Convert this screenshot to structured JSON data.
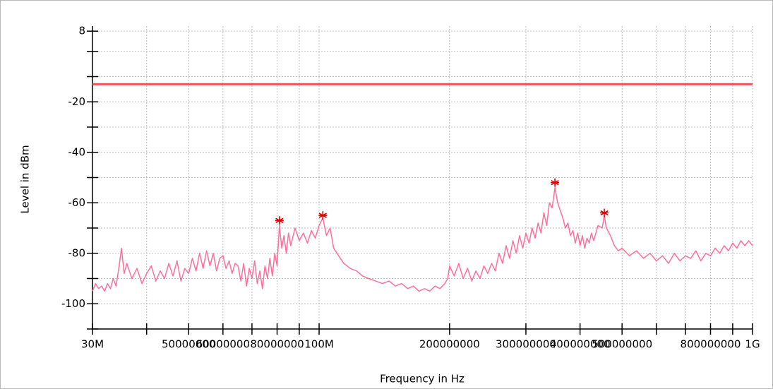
{
  "chart_data": {
    "type": "line",
    "y_label": "Level in dBm",
    "x_label": "Frequency in Hz",
    "log_x": true,
    "grid": true,
    "xlim": [
      30000000,
      1000000000
    ],
    "ylim": [
      -110,
      10
    ],
    "xticks": [
      {
        "value": 30000000,
        "label": "30M"
      },
      50000000,
      60000000,
      80000000,
      {
        "value": 100000000,
        "label": "100M"
      },
      200000000,
      300000000,
      400000000,
      500000000,
      800000000,
      {
        "value": 1000000000,
        "label": "1G"
      }
    ],
    "xticks_unlabeled": [
      40000000,
      70000000,
      90000000,
      600000000,
      700000000,
      900000000
    ],
    "yticks": [
      8,
      -20,
      -40,
      -60,
      -80,
      -100
    ],
    "yticks_unlabeled": [
      0,
      -10,
      -30,
      -50,
      -70,
      -90,
      -110
    ],
    "color": "#ff6f9a",
    "x": [
      30000000,
      30500000,
      31000000,
      31500000,
      32000000,
      32500000,
      33000000,
      33500000,
      34000000,
      34500000,
      35000000,
      35500000,
      36000000,
      37000000,
      38000000,
      39000000,
      40000000,
      41000000,
      42000000,
      43000000,
      44000000,
      45000000,
      46000000,
      47000000,
      48000000,
      49000000,
      50000000,
      51000000,
      52000000,
      53000000,
      54000000,
      55000000,
      56000000,
      57000000,
      58000000,
      59000000,
      60000000,
      61000000,
      62000000,
      63000000,
      64000000,
      65000000,
      66000000,
      67000000,
      68000000,
      69000000,
      70000000,
      71000000,
      72000000,
      73000000,
      74000000,
      75000000,
      76000000,
      77000000,
      78000000,
      79000000,
      80000000,
      81000000,
      82000000,
      83000000,
      84000000,
      85000000,
      86000000,
      88000000,
      90000000,
      92000000,
      94000000,
      96000000,
      98000000,
      100000000,
      102000000,
      104000000,
      106000000,
      108000000,
      110000000,
      114000000,
      118000000,
      122000000,
      126000000,
      130000000,
      135000000,
      140000000,
      145000000,
      150000000,
      155000000,
      160000000,
      165000000,
      170000000,
      175000000,
      180000000,
      185000000,
      190000000,
      195000000,
      198000000,
      200000000,
      205000000,
      210000000,
      215000000,
      220000000,
      225000000,
      230000000,
      235000000,
      240000000,
      245000000,
      250000000,
      255000000,
      260000000,
      265000000,
      270000000,
      275000000,
      280000000,
      285000000,
      290000000,
      295000000,
      300000000,
      305000000,
      310000000,
      315000000,
      320000000,
      325000000,
      330000000,
      335000000,
      340000000,
      345000000,
      350000000,
      355000000,
      360000000,
      365000000,
      370000000,
      375000000,
      380000000,
      385000000,
      390000000,
      395000000,
      400000000,
      405000000,
      410000000,
      415000000,
      420000000,
      425000000,
      430000000,
      440000000,
      450000000,
      455000000,
      460000000,
      470000000,
      480000000,
      490000000,
      500000000,
      520000000,
      540000000,
      560000000,
      580000000,
      600000000,
      620000000,
      640000000,
      660000000,
      680000000,
      700000000,
      720000000,
      740000000,
      760000000,
      780000000,
      800000000,
      820000000,
      840000000,
      860000000,
      880000000,
      900000000,
      920000000,
      940000000,
      960000000,
      980000000,
      1000000000
    ],
    "values": [
      -95,
      -92,
      -94,
      -93,
      -95,
      -92,
      -94,
      -90,
      -93,
      -86,
      -78,
      -88,
      -84,
      -90,
      -86,
      -92,
      -88,
      -85,
      -91,
      -87,
      -90,
      -84,
      -89,
      -83,
      -91,
      -86,
      -88,
      -82,
      -87,
      -80,
      -86,
      -79,
      -85,
      -80,
      -87,
      -82,
      -81,
      -86,
      -83,
      -88,
      -84,
      -85,
      -91,
      -84,
      -93,
      -86,
      -90,
      -83,
      -92,
      -87,
      -94,
      -85,
      -90,
      -82,
      -89,
      -80,
      -85,
      -69,
      -78,
      -73,
      -80,
      -72,
      -77,
      -70,
      -75,
      -72,
      -76,
      -71,
      -74,
      -69,
      -66,
      -73,
      -70,
      -78,
      -80,
      -84,
      -86,
      -87,
      -89,
      -90,
      -91,
      -92,
      -91,
      -93,
      -92,
      -94,
      -93,
      -95,
      -94,
      -95,
      -93,
      -94,
      -92,
      -90,
      -85,
      -89,
      -84,
      -90,
      -86,
      -91,
      -87,
      -90,
      -85,
      -88,
      -84,
      -87,
      -80,
      -84,
      -77,
      -82,
      -75,
      -80,
      -73,
      -78,
      -72,
      -76,
      -70,
      -74,
      -68,
      -72,
      -64,
      -69,
      -60,
      -62,
      -54,
      -60,
      -63,
      -66,
      -70,
      -68,
      -73,
      -71,
      -76,
      -72,
      -77,
      -73,
      -78,
      -74,
      -76,
      -72,
      -75,
      -69,
      -70,
      -65,
      -70,
      -73,
      -77,
      -79,
      -78,
      -81,
      -79,
      -82,
      -80,
      -83,
      -81,
      -84,
      -80,
      -83,
      -81,
      -82,
      -79,
      -83,
      -80,
      -81,
      -78,
      -80,
      -77,
      -79,
      -76,
      -78,
      -75,
      -77,
      -75,
      -77
    ],
    "markers": {
      "color": "#e00000",
      "x": [
        81000000,
        102000000,
        350000000,
        455000000
      ],
      "values": [
        -67,
        -65,
        -52,
        -64
      ]
    },
    "limit_line": {
      "value": -13,
      "color": "#f05050"
    }
  }
}
